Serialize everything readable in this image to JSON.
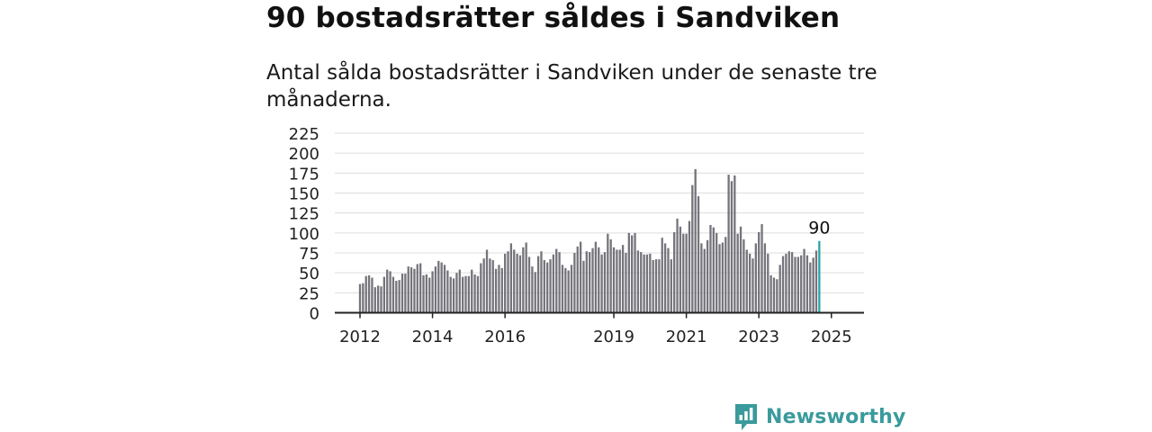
{
  "title": "90 bostadsrätter såldes i Sandviken",
  "subtitle": "Antal sålda bostadsrätter i Sandviken under de senaste tre månaderna.",
  "brand": {
    "name": "Newsworthy",
    "icon": "newsworthy-logo-icon",
    "color": "#3a9a9c"
  },
  "chart_data": {
    "type": "bar",
    "start": "2012-01",
    "y_ticks": [
      0,
      25,
      50,
      75,
      100,
      125,
      150,
      175,
      200,
      225
    ],
    "ylim": [
      0,
      225
    ],
    "x_tick_labels": [
      {
        "label": "2012",
        "year": 2012
      },
      {
        "label": "2014",
        "year": 2014
      },
      {
        "label": "2016",
        "year": 2016
      },
      {
        "label": "2019",
        "year": 2019
      },
      {
        "label": "2021",
        "year": 2021
      },
      {
        "label": "2023",
        "year": 2023
      },
      {
        "label": "2025",
        "year": 2025
      }
    ],
    "grid": true,
    "bar_color": "#75747b",
    "highlight_color": "#2ba3a5",
    "highlight_label": "90",
    "values": [
      36,
      37,
      46,
      47,
      44,
      32,
      34,
      33,
      45,
      54,
      52,
      45,
      40,
      41,
      49,
      49,
      58,
      57,
      55,
      61,
      62,
      47,
      48,
      44,
      52,
      58,
      65,
      63,
      60,
      53,
      45,
      43,
      50,
      54,
      45,
      46,
      46,
      54,
      48,
      46,
      62,
      68,
      79,
      68,
      66,
      55,
      60,
      56,
      74,
      77,
      87,
      79,
      74,
      72,
      82,
      88,
      70,
      58,
      51,
      71,
      77,
      66,
      63,
      67,
      73,
      80,
      76,
      60,
      56,
      53,
      60,
      75,
      83,
      89,
      65,
      77,
      76,
      81,
      89,
      82,
      73,
      76,
      99,
      92,
      82,
      79,
      79,
      85,
      75,
      100,
      97,
      100,
      78,
      76,
      73,
      73,
      74,
      66,
      67,
      67,
      94,
      87,
      81,
      67,
      101,
      118,
      108,
      99,
      99,
      115,
      160,
      180,
      146,
      87,
      80,
      91,
      110,
      107,
      100,
      86,
      88,
      95,
      173,
      165,
      172,
      99,
      108,
      92,
      79,
      74,
      68,
      87,
      101,
      111,
      87,
      74,
      47,
      44,
      42,
      60,
      71,
      74,
      77,
      76,
      70,
      70,
      72,
      80,
      72,
      63,
      69,
      78,
      90
    ]
  }
}
